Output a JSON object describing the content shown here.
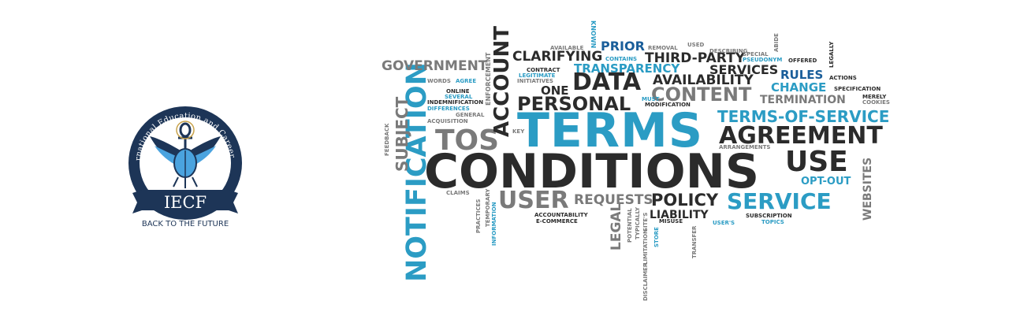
{
  "logo": {
    "arc_text": "International Education and Career Fair",
    "acronym": "IECF",
    "tagline": "BACK TO THE FUTURE",
    "colors": {
      "navy": "#1d3557",
      "sky": "#4aa3df",
      "gold": "#c8a24a"
    }
  },
  "cloud": {
    "terms": "TERMS",
    "conditions": "CONDITIONS",
    "tos": "TOS",
    "notification": "NOTIFICATION",
    "account": "ACCOUNT",
    "subject": "SUBJECT",
    "agreement": "AGREEMENT",
    "use": "USE",
    "terms_of_service": "TERMS-OF-SERVICE",
    "service": "SERVICE",
    "user": "USER",
    "requests": "REQUESTS",
    "policy": "POLICY",
    "liability": "LIABILITY",
    "data": "DATA",
    "personal": "PERSONAL",
    "content": "CONTENT",
    "availability": "AVAILABILITY",
    "transparency": "TRANSPARENCY",
    "clarifying": "CLARIFYING",
    "third_party": "THIRD-PARTY",
    "government": "GOVERNMENT",
    "prior": "PRIOR",
    "services": "SERVICES",
    "rules": "RULES",
    "change": "CHANGE",
    "termination": "TERMINATION",
    "opt_out": "OPT-OUT",
    "websites": "WEBSITES",
    "legal": "LEGAL",
    "one": "ONE",
    "enforcement": "ENFORCEMENT",
    "known": "KNOWN",
    "available": "AVAILABLE",
    "removal": "REMOVAL",
    "used": "USED",
    "describing": "DESCRIBING",
    "special": "SPECIAL",
    "abide": "ABIDE",
    "legally": "LEGALLY",
    "contains": "CONTAINS",
    "pseudonym": "PSEUDONYM",
    "offered": "OFFERED",
    "contract": "CONTRACT",
    "legitimate": "LEGITIMATE",
    "initiatives": "INITIATIVES",
    "words": "WORDS",
    "agree": "AGREE",
    "online": "ONLINE",
    "several": "SEVERAL",
    "indemnification": "INDEMNIFICATION",
    "differences": "DIFFERENCES",
    "general": "GENERAL",
    "acquisition": "ACQUISITION",
    "key": "KEY",
    "must": "MUST",
    "modification": "MODIFICATION",
    "actions": "ACTIONS",
    "specification": "SPECIFICATION",
    "merely": "MERELY",
    "cookies": "COOKIES",
    "arrangements": "ARRANGEMENTS",
    "feedback": "FEEDBACK",
    "claims": "CLAIMS",
    "practices": "PRACTICES",
    "temporary": "TEMPORARY",
    "information": "INFORMATION",
    "accountability": "ACCOUNTABILITY",
    "e_commerce": "E-COMMERCE",
    "potential": "POTENTIAL",
    "typically": "TYPICALLY",
    "sites": "SITE'S",
    "store": "STORE",
    "misuse": "MISUSE",
    "transfer": "TRANSFER",
    "users": "USER'S",
    "subscription": "SUBSCRIPTION",
    "topics": "TOPICS",
    "disclaimer": "DISCLAIMER",
    "limitation": "LIMITATION"
  }
}
